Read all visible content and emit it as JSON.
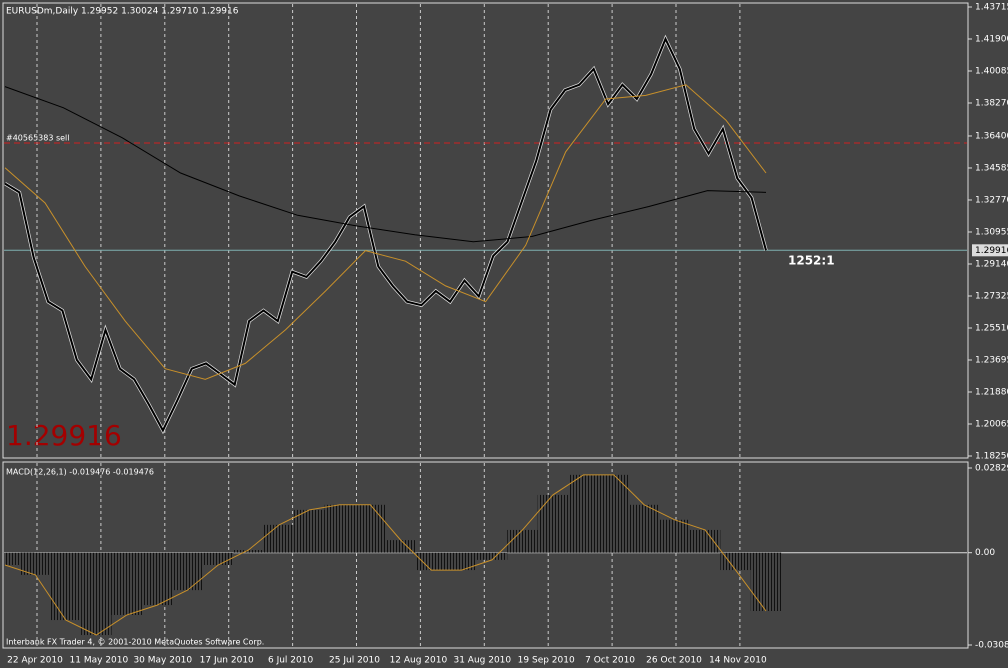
{
  "header": {
    "title": "EURUSDm,Daily  1.29952 1.30024 1.29710 1.29916",
    "order": "#40565383 sell",
    "big_price": "1.29916",
    "ratio": "1252:1",
    "footer": "Interbank FX Trader 4, © 2001-2010 MetaQuotes Software Corp."
  },
  "chart_data": [
    {
      "type": "line",
      "ylim": [
        1.1825,
        1.43715
      ],
      "yticks": [
        {
          "value": 1.43715,
          "label": "1.43715"
        },
        {
          "value": 1.419,
          "label": "1.41900"
        },
        {
          "value": 1.40085,
          "label": "1.40085"
        },
        {
          "value": 1.3827,
          "label": "1.38270"
        },
        {
          "value": 1.364,
          "label": "1.36400"
        },
        {
          "value": 1.34585,
          "label": "1.34585"
        },
        {
          "value": 1.3277,
          "label": "1.32770"
        },
        {
          "value": 1.30955,
          "label": "1.30955"
        },
        {
          "value": 1.2914,
          "label": "1.29140"
        },
        {
          "value": 1.27325,
          "label": "1.27325"
        },
        {
          "value": 1.2551,
          "label": "1.25510"
        },
        {
          "value": 1.23695,
          "label": "1.23695"
        },
        {
          "value": 1.2188,
          "label": "1.21880"
        },
        {
          "value": 1.20065,
          "label": "1.20065"
        },
        {
          "value": 1.1825,
          "label": "1.18250"
        }
      ],
      "current": {
        "value": 1.29916,
        "label": "1.29916"
      },
      "order_level": 1.36,
      "series": [
        {
          "name": "price",
          "color": "#000000",
          "values": [
            1.337,
            1.332,
            1.295,
            1.27,
            1.265,
            1.237,
            1.226,
            1.254,
            1.232,
            1.226,
            1.212,
            1.197,
            1.214,
            1.232,
            1.235,
            1.229,
            1.223,
            1.259,
            1.265,
            1.259,
            1.287,
            1.284,
            1.293,
            1.304,
            1.318,
            1.324,
            1.29,
            1.279,
            1.27,
            1.268,
            1.276,
            1.27,
            1.282,
            1.273,
            1.296,
            1.304,
            1.327,
            1.35,
            1.379,
            1.39,
            1.393,
            1.402,
            1.382,
            1.393,
            1.385,
            1.399,
            1.419,
            1.402,
            1.368,
            1.354,
            1.368,
            1.34,
            1.329,
            1.29916
          ]
        },
        {
          "name": "ma-slow",
          "color": "#000000",
          "values": [
            1.392,
            1.38,
            1.363,
            1.343,
            1.33,
            1.319,
            1.313,
            1.308,
            1.304,
            1.307,
            1.316,
            1.324,
            1.333,
            1.332
          ]
        },
        {
          "name": "ma-fast",
          "color": "#c8902a",
          "values": [
            1.346,
            1.326,
            1.29,
            1.259,
            1.232,
            1.226,
            1.235,
            1.254,
            1.276,
            1.299,
            1.293,
            1.279,
            1.27,
            1.302,
            1.355,
            1.385,
            1.387,
            1.393,
            1.373,
            1.343
          ]
        }
      ],
      "xlabels": [
        "22 Apr 2010",
        "11 May 2010",
        "30 May 2010",
        "17 Jun 2010",
        "6 Jul 2010",
        "25 Jul 2010",
        "12 Aug 2010",
        "31 Aug 2010",
        "19 Sep 2010",
        "7 Oct 2010",
        "26 Oct 2010",
        "14 Nov 2010"
      ]
    },
    {
      "type": "macd",
      "title": "MACD(12,26,1) -0.019476 -0.019476",
      "ylim": [
        -0.03083,
        0.02829
      ],
      "yticks": [
        {
          "value": 0.02829,
          "label": "0.02829"
        },
        {
          "value": 0,
          "label": "0.00"
        },
        {
          "value": -0.03083,
          "label": "-0.03083"
        }
      ],
      "color": "#c8902a",
      "values": [
        -0.0041,
        -0.0074,
        -0.0225,
        -0.0275,
        -0.0208,
        -0.0175,
        -0.0125,
        -0.0041,
        0.0009,
        0.0093,
        0.0143,
        0.016,
        0.016,
        0.0042,
        -0.0058,
        -0.0058,
        -0.0024,
        0.0076,
        0.0193,
        0.026,
        0.026,
        0.016,
        0.011,
        0.0076,
        -0.0058,
        -0.019476
      ]
    }
  ]
}
